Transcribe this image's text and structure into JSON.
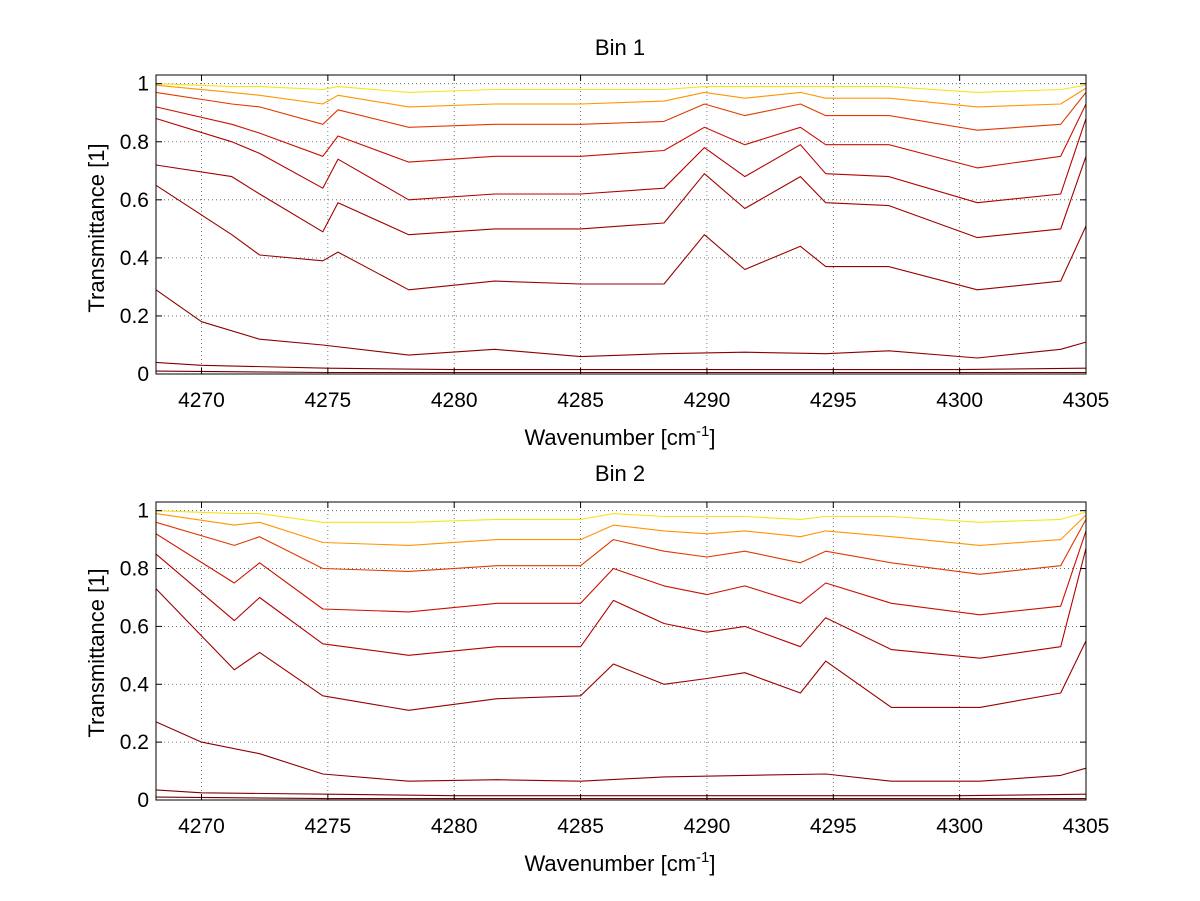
{
  "figure": {
    "background": "#ffffff"
  },
  "chart_data": [
    {
      "type": "line",
      "title": "Bin 1",
      "xlabel": "Wavenumber [cm",
      "xlabel_sup": "-1",
      "xlabel_close": "]",
      "ylabel": "Transmittance [1]",
      "xlim": [
        4268.2,
        4305.0
      ],
      "ylim": [
        0,
        1.03
      ],
      "xticks": [
        "4270",
        "4275",
        "4280",
        "4285",
        "4290",
        "4295",
        "4300",
        "4305"
      ],
      "yticks": [
        "0",
        "0.2",
        "0.4",
        "0.6",
        "0.8",
        "1"
      ],
      "grid": true,
      "line_width_contrast": "thin",
      "lines": [
        {
          "x": [
            4268.2,
            4271.2,
            4272.3,
            4274.8,
            4275.4,
            4278.2,
            4281.6,
            4285.0,
            4288.3,
            4289.9,
            4291.5,
            4293.7,
            4294.7,
            4297.2,
            4300.7,
            4304.0,
            4305.0
          ],
          "y": [
            1.0,
            0.99,
            0.99,
            0.98,
            0.99,
            0.97,
            0.98,
            0.98,
            0.98,
            0.99,
            0.99,
            0.99,
            0.99,
            0.99,
            0.97,
            0.98,
            0.995
          ],
          "color": "#f7e51a"
        },
        {
          "x": [
            4268.2,
            4271.2,
            4272.3,
            4274.8,
            4275.4,
            4278.2,
            4281.6,
            4285.0,
            4288.3,
            4289.9,
            4291.5,
            4293.7,
            4294.7,
            4297.2,
            4300.7,
            4304.0,
            4305.0
          ],
          "y": [
            0.995,
            0.97,
            0.96,
            0.93,
            0.96,
            0.92,
            0.93,
            0.93,
            0.94,
            0.97,
            0.95,
            0.97,
            0.95,
            0.95,
            0.92,
            0.93,
            0.985
          ],
          "color": "#ff9500"
        },
        {
          "x": [
            4268.2,
            4271.2,
            4272.3,
            4274.8,
            4275.4,
            4278.2,
            4281.6,
            4285.0,
            4288.3,
            4289.9,
            4291.5,
            4293.7,
            4294.7,
            4297.2,
            4300.7,
            4304.0,
            4305.0
          ],
          "y": [
            0.97,
            0.93,
            0.92,
            0.86,
            0.91,
            0.85,
            0.86,
            0.86,
            0.87,
            0.93,
            0.89,
            0.93,
            0.89,
            0.89,
            0.84,
            0.86,
            0.97
          ],
          "color": "#e03a00"
        },
        {
          "x": [
            4268.2,
            4271.2,
            4272.3,
            4274.8,
            4275.4,
            4278.2,
            4281.6,
            4285.0,
            4288.3,
            4289.9,
            4291.5,
            4293.7,
            4294.7,
            4297.2,
            4300.7,
            4304.0,
            4305.0
          ],
          "y": [
            0.92,
            0.86,
            0.83,
            0.75,
            0.82,
            0.73,
            0.75,
            0.75,
            0.77,
            0.85,
            0.79,
            0.85,
            0.79,
            0.79,
            0.71,
            0.75,
            0.93
          ],
          "color": "#cc1100"
        },
        {
          "x": [
            4268.2,
            4271.2,
            4272.3,
            4274.8,
            4275.4,
            4278.2,
            4281.6,
            4285.0,
            4288.3,
            4289.9,
            4291.5,
            4293.7,
            4294.7,
            4297.2,
            4300.7,
            4304.0,
            4305.0
          ],
          "y": [
            0.88,
            0.8,
            0.76,
            0.64,
            0.74,
            0.6,
            0.62,
            0.62,
            0.64,
            0.78,
            0.68,
            0.79,
            0.69,
            0.68,
            0.59,
            0.62,
            0.88
          ],
          "color": "#b30000"
        },
        {
          "x": [
            4268.2,
            4271.2,
            4272.3,
            4274.8,
            4275.4,
            4278.2,
            4281.6,
            4285.0,
            4288.3,
            4289.9,
            4291.5,
            4293.7,
            4294.7,
            4297.2,
            4300.7,
            4304.0,
            4305.0
          ],
          "y": [
            0.72,
            0.68,
            0.62,
            0.49,
            0.59,
            0.48,
            0.5,
            0.5,
            0.52,
            0.69,
            0.57,
            0.68,
            0.59,
            0.58,
            0.47,
            0.5,
            0.75
          ],
          "color": "#a00000"
        },
        {
          "x": [
            4268.2,
            4271.2,
            4272.3,
            4274.8,
            4275.4,
            4278.2,
            4281.6,
            4285.0,
            4288.3,
            4289.9,
            4291.5,
            4293.7,
            4294.7,
            4297.2,
            4300.7,
            4304.0,
            4305.0
          ],
          "y": [
            0.65,
            0.48,
            0.41,
            0.39,
            0.42,
            0.29,
            0.32,
            0.31,
            0.31,
            0.48,
            0.36,
            0.44,
            0.37,
            0.37,
            0.29,
            0.32,
            0.51
          ],
          "color": "#990000"
        },
        {
          "x": [
            4268.2,
            4270.0,
            4272.3,
            4274.8,
            4278.2,
            4281.6,
            4285.0,
            4288.3,
            4291.5,
            4294.7,
            4297.2,
            4300.7,
            4304.0,
            4305.0
          ],
          "y": [
            0.29,
            0.18,
            0.12,
            0.1,
            0.065,
            0.085,
            0.06,
            0.07,
            0.075,
            0.07,
            0.08,
            0.055,
            0.085,
            0.11
          ],
          "color": "#8b0000"
        },
        {
          "x": [
            4268.2,
            4270.0,
            4275.0,
            4280.0,
            4285.0,
            4290.0,
            4295.0,
            4300.0,
            4305.0
          ],
          "y": [
            0.04,
            0.03,
            0.02,
            0.015,
            0.015,
            0.015,
            0.015,
            0.015,
            0.02
          ],
          "color": "#800000"
        },
        {
          "x": [
            4268.2,
            4275.0,
            4285.0,
            4295.0,
            4305.0
          ],
          "y": [
            0.01,
            0.005,
            0.005,
            0.005,
            0.005
          ],
          "color": "#6d0000"
        }
      ]
    },
    {
      "type": "line",
      "title": "Bin 2",
      "xlabel": "Wavenumber [cm",
      "xlabel_sup": "-1",
      "xlabel_close": "]",
      "ylabel": "Transmittance [1]",
      "xlim": [
        4268.2,
        4305.0
      ],
      "ylim": [
        0,
        1.03
      ],
      "xticks": [
        "4270",
        "4275",
        "4280",
        "4285",
        "4290",
        "4295",
        "4300",
        "4305"
      ],
      "yticks": [
        "0",
        "0.2",
        "0.4",
        "0.6",
        "0.8",
        "1"
      ],
      "grid": true,
      "line_width_contrast": "thin",
      "lines": [
        {
          "x": [
            4268.2,
            4271.3,
            4272.3,
            4274.8,
            4278.2,
            4281.7,
            4285.0,
            4286.3,
            4288.3,
            4290.0,
            4291.5,
            4293.7,
            4294.7,
            4297.3,
            4300.8,
            4304.0,
            4305.0
          ],
          "y": [
            1.0,
            0.99,
            0.99,
            0.96,
            0.96,
            0.97,
            0.97,
            0.99,
            0.98,
            0.98,
            0.98,
            0.97,
            0.98,
            0.98,
            0.96,
            0.97,
            0.995
          ],
          "color": "#f7e51a"
        },
        {
          "x": [
            4268.2,
            4271.3,
            4272.3,
            4274.8,
            4278.2,
            4281.7,
            4285.0,
            4286.3,
            4288.3,
            4290.0,
            4291.5,
            4293.7,
            4294.7,
            4297.3,
            4300.8,
            4304.0,
            4305.0
          ],
          "y": [
            0.99,
            0.95,
            0.96,
            0.89,
            0.88,
            0.9,
            0.9,
            0.95,
            0.93,
            0.92,
            0.93,
            0.91,
            0.93,
            0.91,
            0.88,
            0.9,
            0.985
          ],
          "color": "#ff9500"
        },
        {
          "x": [
            4268.2,
            4271.3,
            4272.3,
            4274.8,
            4278.2,
            4281.7,
            4285.0,
            4286.3,
            4288.3,
            4290.0,
            4291.5,
            4293.7,
            4294.7,
            4297.3,
            4300.8,
            4304.0,
            4305.0
          ],
          "y": [
            0.96,
            0.88,
            0.91,
            0.8,
            0.79,
            0.81,
            0.81,
            0.9,
            0.86,
            0.84,
            0.86,
            0.82,
            0.86,
            0.82,
            0.78,
            0.81,
            0.97
          ],
          "color": "#e03a00"
        },
        {
          "x": [
            4268.2,
            4271.3,
            4272.3,
            4274.8,
            4278.2,
            4281.7,
            4285.0,
            4286.3,
            4288.3,
            4290.0,
            4291.5,
            4293.7,
            4294.7,
            4297.3,
            4300.8,
            4304.0,
            4305.0
          ],
          "y": [
            0.92,
            0.75,
            0.82,
            0.66,
            0.65,
            0.68,
            0.68,
            0.8,
            0.74,
            0.71,
            0.74,
            0.68,
            0.75,
            0.68,
            0.64,
            0.67,
            0.93
          ],
          "color": "#cc1100"
        },
        {
          "x": [
            4268.2,
            4271.3,
            4272.3,
            4274.8,
            4278.2,
            4281.7,
            4285.0,
            4286.3,
            4288.3,
            4290.0,
            4291.5,
            4293.7,
            4294.7,
            4297.3,
            4300.8,
            4304.0,
            4305.0
          ],
          "y": [
            0.85,
            0.62,
            0.7,
            0.54,
            0.5,
            0.53,
            0.53,
            0.69,
            0.61,
            0.58,
            0.6,
            0.53,
            0.63,
            0.52,
            0.49,
            0.53,
            0.87
          ],
          "color": "#b30000"
        },
        {
          "x": [
            4268.2,
            4271.3,
            4272.3,
            4274.8,
            4278.2,
            4281.7,
            4285.0,
            4286.3,
            4288.3,
            4290.0,
            4291.5,
            4293.7,
            4294.7,
            4297.3,
            4300.8,
            4304.0,
            4305.0
          ],
          "y": [
            0.73,
            0.45,
            0.51,
            0.36,
            0.31,
            0.35,
            0.36,
            0.47,
            0.4,
            0.42,
            0.44,
            0.37,
            0.48,
            0.32,
            0.32,
            0.37,
            0.55
          ],
          "color": "#990000"
        },
        {
          "x": [
            4268.2,
            4270.0,
            4272.3,
            4274.8,
            4278.2,
            4281.7,
            4285.0,
            4288.3,
            4291.5,
            4294.7,
            4297.3,
            4300.8,
            4304.0,
            4305.0
          ],
          "y": [
            0.27,
            0.2,
            0.16,
            0.09,
            0.065,
            0.07,
            0.065,
            0.08,
            0.085,
            0.09,
            0.065,
            0.065,
            0.085,
            0.11
          ],
          "color": "#8b0000"
        },
        {
          "x": [
            4268.2,
            4270.0,
            4275.0,
            4280.0,
            4285.0,
            4290.0,
            4295.0,
            4300.0,
            4305.0
          ],
          "y": [
            0.035,
            0.025,
            0.02,
            0.015,
            0.015,
            0.015,
            0.015,
            0.015,
            0.02
          ],
          "color": "#800000"
        },
        {
          "x": [
            4268.2,
            4275.0,
            4285.0,
            4295.0,
            4305.0
          ],
          "y": [
            0.01,
            0.005,
            0.005,
            0.005,
            0.005
          ],
          "color": "#6d0000"
        }
      ]
    }
  ]
}
